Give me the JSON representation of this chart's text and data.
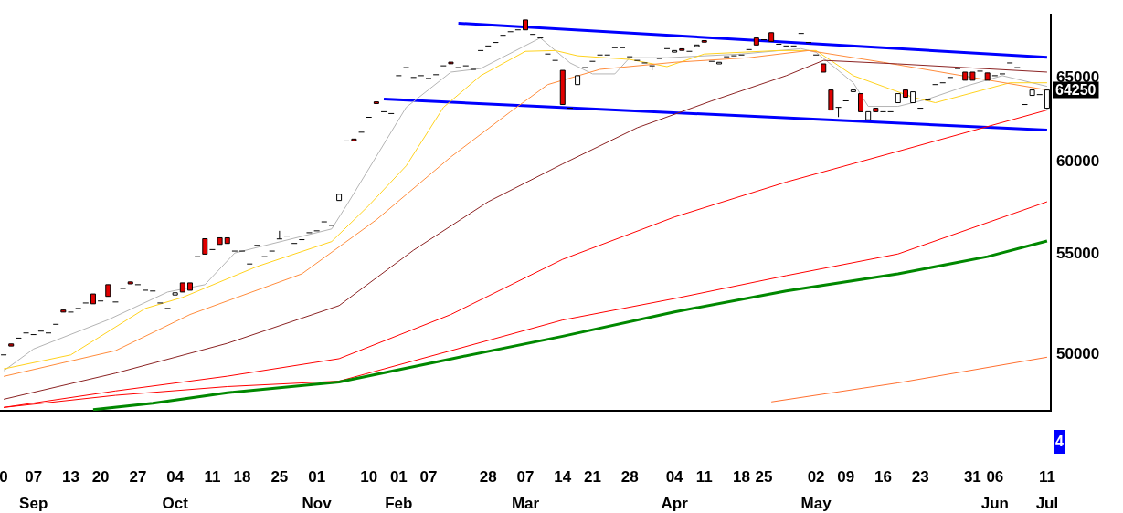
{
  "chart_data": {
    "type": "candlestick",
    "categories": [
      "0",
      null,
      null,
      null,
      "07\nSep",
      null,
      null,
      null,
      null,
      "13",
      null,
      null,
      null,
      "20",
      null,
      null,
      null,
      null,
      "27",
      null,
      null,
      null,
      null,
      "04\nOct",
      null,
      null,
      null,
      null,
      "11",
      null,
      null,
      null,
      "18",
      null,
      null,
      null,
      null,
      "25",
      null,
      null,
      null,
      null,
      "01\nNov",
      null,
      null,
      null,
      null,
      null,
      null,
      "10",
      null,
      null,
      null,
      "01\nFeb",
      null,
      null,
      null,
      "07",
      null,
      null,
      null,
      null,
      null,
      null,
      null,
      "28",
      null,
      null,
      null,
      null,
      "07\nMar",
      null,
      null,
      null,
      null,
      "14",
      null,
      null,
      null,
      "21",
      null,
      null,
      null,
      null,
      "28",
      null,
      null,
      null,
      null,
      null,
      "04\nApr",
      null,
      null,
      null,
      "11",
      null,
      null,
      null,
      null,
      "18",
      null,
      null,
      "25",
      null,
      null,
      null,
      null,
      null,
      null,
      "02\nMay",
      null,
      null,
      null,
      "09",
      null,
      null,
      null,
      null,
      "16",
      null,
      null,
      null,
      null,
      "23",
      null,
      null,
      null,
      null,
      null,
      null,
      "31",
      null,
      null,
      "06\nJun",
      null,
      null,
      null,
      null,
      null,
      null,
      "11\nJul"
    ],
    "ohlc": [
      [
        49980,
        49980,
        49980,
        49980
      ],
      [
        50500,
        50500,
        50400,
        50400
      ],
      [
        50780,
        50780,
        50780,
        50780
      ],
      [
        51030,
        51030,
        51030,
        51030
      ],
      [
        50950,
        50950,
        50950,
        50950
      ],
      [
        51120,
        51120,
        51120,
        51120
      ],
      [
        51030,
        51030,
        51030,
        51030
      ],
      [
        51450,
        51450,
        51450,
        51450
      ],
      [
        52150,
        52150,
        52050,
        52050
      ],
      [
        52050,
        52050,
        52050,
        52050
      ],
      [
        52230,
        52230,
        52230,
        52230
      ],
      [
        52500,
        52500,
        52500,
        52500
      ],
      [
        52950,
        52950,
        52460,
        52460
      ],
      [
        52600,
        52600,
        52600,
        52600
      ],
      [
        53420,
        53420,
        52830,
        52830
      ],
      [
        52550,
        52550,
        52550,
        52550
      ],
      [
        53230,
        53230,
        53230,
        53230
      ],
      [
        53560,
        53560,
        53460,
        53460
      ],
      [
        53420,
        53420,
        53420,
        53420
      ],
      [
        53140,
        53140,
        53140,
        53140
      ],
      [
        53100,
        53100,
        53100,
        53100
      ],
      [
        52500,
        52500,
        52500,
        52500
      ],
      [
        52230,
        52230,
        52230,
        52230
      ],
      [
        52900,
        53010,
        52900,
        53010
      ],
      [
        53510,
        53510,
        53050,
        53050
      ],
      [
        53510,
        53510,
        53140,
        53140
      ],
      [
        54860,
        54860,
        54860,
        54860
      ],
      [
        55800,
        55800,
        54990,
        54990
      ],
      [
        55230,
        55230,
        55230,
        55230
      ],
      [
        55850,
        55850,
        55500,
        55500
      ],
      [
        55850,
        55850,
        55550,
        55550
      ],
      [
        55150,
        55150,
        55150,
        55150
      ],
      [
        55150,
        55150,
        55150,
        55150
      ],
      [
        54480,
        54480,
        54480,
        54480
      ],
      [
        55450,
        55450,
        55450,
        55450
      ],
      [
        54860,
        54860,
        54860,
        54860
      ],
      [
        55150,
        55150,
        55150,
        55150
      ],
      [
        55790,
        56220,
        55790,
        55790
      ],
      [
        55940,
        55940,
        55940,
        55940
      ],
      [
        55550,
        55550,
        55550,
        55550
      ],
      [
        55750,
        55750,
        55750,
        55750
      ],
      [
        56120,
        56120,
        56120,
        56120
      ],
      [
        56220,
        56220,
        56220,
        56220
      ],
      [
        56700,
        56700,
        56700,
        56700
      ],
      [
        56510,
        56510,
        56510,
        56510
      ],
      [
        57860,
        58200,
        57860,
        58200
      ],
      [
        61220,
        61220,
        61220,
        61220
      ],
      [
        61330,
        61330,
        61230,
        61230
      ],
      [
        61730,
        61730,
        61730,
        61730
      ],
      [
        62610,
        62610,
        62610,
        62610
      ],
      [
        63530,
        63530,
        63430,
        63430
      ],
      [
        62940,
        62940,
        62940,
        62940
      ],
      [
        62830,
        62830,
        62830,
        62830
      ],
      [
        65130,
        65130,
        65130,
        65130
      ],
      [
        65630,
        65630,
        65630,
        65630
      ],
      [
        65020,
        65020,
        65020,
        65020
      ],
      [
        65130,
        65130,
        65130,
        65130
      ],
      [
        64960,
        64960,
        64960,
        64960
      ],
      [
        65190,
        65190,
        65190,
        65190
      ],
      [
        65740,
        65740,
        65740,
        65740
      ],
      [
        65970,
        65970,
        65870,
        65870
      ],
      [
        65630,
        65630,
        65630,
        65630
      ],
      [
        65740,
        65740,
        65740,
        65740
      ],
      [
        65520,
        65520,
        65520,
        65520
      ],
      [
        66700,
        66700,
        66700,
        66700
      ],
      [
        66990,
        66990,
        66990,
        66990
      ],
      [
        67210,
        67210,
        67210,
        67210
      ],
      [
        67670,
        67670,
        67670,
        67670
      ],
      [
        67900,
        67900,
        67900,
        67900
      ],
      [
        68020,
        68020,
        68020,
        68020
      ],
      [
        68660,
        68660,
        68020,
        68020
      ],
      [
        67730,
        67730,
        67730,
        67730
      ],
      [
        67500,
        67500,
        67500,
        67500
      ],
      [
        66480,
        66480,
        66480,
        66480
      ],
      [
        66080,
        66080,
        66080,
        66080
      ],
      [
        65460,
        65460,
        63370,
        63370
      ],
      [
        63150,
        63150,
        63150,
        63150
      ],
      [
        64580,
        65130,
        64580,
        65130
      ],
      [
        65630,
        65630,
        65630,
        65630
      ],
      [
        66020,
        66020,
        66020,
        66020
      ],
      [
        66420,
        66420,
        66420,
        66420
      ],
      [
        66420,
        66420,
        66420,
        66420
      ],
      [
        66880,
        66880,
        66880,
        66880
      ],
      [
        66880,
        66880,
        66880,
        66880
      ],
      [
        66310,
        66310,
        66310,
        66310
      ],
      [
        66080,
        66080,
        66080,
        66080
      ],
      [
        65920,
        65920,
        65920,
        65920
      ],
      [
        65740,
        65740,
        65460,
        65740
      ],
      [
        66200,
        66200,
        66200,
        66200
      ],
      [
        66820,
        66820,
        66820,
        66820
      ],
      [
        66600,
        66700,
        66600,
        66700
      ],
      [
        66810,
        66810,
        66710,
        66710
      ],
      [
        66650,
        66650,
        66650,
        66650
      ],
      [
        66950,
        67050,
        66950,
        67050
      ],
      [
        67330,
        67330,
        67230,
        67230
      ],
      [
        66020,
        66020,
        66020,
        66020
      ],
      [
        65860,
        65960,
        65860,
        65960
      ],
      [
        66310,
        66310,
        66310,
        66310
      ],
      [
        66370,
        66370,
        66370,
        66370
      ],
      [
        66420,
        66420,
        66420,
        66420
      ],
      [
        66760,
        66760,
        66760,
        66760
      ],
      [
        67500,
        67500,
        67050,
        67050
      ],
      [
        67390,
        67390,
        67390,
        67390
      ],
      [
        67840,
        67840,
        67280,
        67280
      ],
      [
        67100,
        67100,
        67100,
        67100
      ],
      [
        66990,
        66990,
        66990,
        66990
      ],
      [
        66990,
        66990,
        66990,
        66990
      ],
      [
        67790,
        67790,
        67790,
        67790
      ],
      [
        67210,
        67210,
        67210,
        67210
      ],
      [
        66420,
        66420,
        66420,
        66420
      ],
      [
        65860,
        65860,
        65350,
        65350
      ],
      [
        64250,
        64250,
        63040,
        63040
      ],
      [
        63200,
        63200,
        62620,
        63200
      ],
      [
        63590,
        63590,
        63590,
        63590
      ],
      [
        64150,
        64250,
        64150,
        64250
      ],
      [
        64030,
        64030,
        62940,
        62940
      ],
      [
        62460,
        62940,
        62460,
        62940
      ],
      [
        63150,
        63150,
        62940,
        62940
      ],
      [
        62940,
        62940,
        62940,
        62940
      ],
      [
        62940,
        62940,
        62940,
        62940
      ],
      [
        63480,
        64030,
        63480,
        64030
      ],
      [
        64250,
        64250,
        63810,
        63810
      ],
      [
        63480,
        64140,
        63480,
        64140
      ],
      [
        63150,
        63150,
        63150,
        63150
      ],
      [
        63640,
        63640,
        63640,
        63640
      ],
      [
        64580,
        64580,
        64580,
        64580
      ],
      [
        64690,
        64690,
        64690,
        64690
      ],
      [
        65020,
        65020,
        65020,
        65020
      ],
      [
        65570,
        65570,
        65570,
        65570
      ],
      [
        65350,
        65350,
        64850,
        64850
      ],
      [
        65350,
        65350,
        64850,
        64850
      ],
      [
        65410,
        65410,
        65410,
        65410
      ],
      [
        65300,
        65300,
        64850,
        64850
      ],
      [
        65130,
        65130,
        65130,
        65130
      ],
      [
        65240,
        65240,
        65240,
        65240
      ],
      [
        65920,
        65920,
        65920,
        65920
      ],
      [
        65630,
        65630,
        65630,
        65630
      ],
      [
        63370,
        63370,
        63370,
        63370
      ],
      [
        63920,
        64250,
        63920,
        64250
      ],
      [
        63970,
        63970,
        63970,
        63970
      ],
      [
        63150,
        64250,
        63100,
        64250
      ]
    ],
    "series": [
      {
        "type": "line",
        "color": "#008800",
        "values": [
          null,
          null,
          null,
          null,
          null,
          null,
          null,
          null,
          null,
          null,
          null,
          null,
          47450,
          null,
          null,
          null,
          null,
          null,
          null,
          null,
          47740,
          null,
          null,
          null,
          null,
          null,
          null,
          null,
          null,
          null,
          48220,
          null,
          null,
          null,
          null,
          null,
          null,
          null,
          null,
          null,
          null,
          null,
          null,
          null,
          null,
          48710,
          null,
          null,
          null,
          null,
          null,
          null,
          null,
          null,
          null,
          null,
          null,
          null,
          null,
          null,
          49790,
          null,
          null,
          null,
          null,
          null,
          null,
          null,
          null,
          null,
          null,
          null,
          null,
          null,
          null,
          50870,
          null,
          null,
          null,
          null,
          null,
          null,
          null,
          null,
          null,
          null,
          null,
          null,
          null,
          null,
          52060,
          null,
          null,
          null,
          null,
          null,
          null,
          null,
          null,
          null,
          null,
          null,
          null,
          null,
          null,
          53100,
          null,
          null,
          null,
          null,
          null,
          null,
          null,
          null,
          null,
          null,
          null,
          null,
          null,
          null,
          53970,
          null,
          null,
          null,
          null,
          null,
          null,
          null,
          null,
          null,
          null,
          null,
          54860,
          null,
          null,
          null,
          null,
          null,
          null,
          null,
          55680
        ]
      },
      {
        "type": "line",
        "color": "#ff0000",
        "values": [
          47550,
          null,
          null,
          null,
          null,
          null,
          null,
          null,
          null,
          null,
          null,
          null,
          null,
          null,
          null,
          48100,
          null,
          null,
          null,
          null,
          null,
          null,
          null,
          null,
          null,
          null,
          null,
          null,
          null,
          null,
          48500,
          null,
          null,
          null,
          null,
          null,
          null,
          null,
          null,
          null,
          null,
          null,
          null,
          null,
          null,
          48750,
          null,
          null,
          null,
          null,
          null,
          null,
          null,
          null,
          null,
          null,
          null,
          null,
          null,
          null,
          50180,
          null,
          null,
          null,
          null,
          null,
          null,
          null,
          null,
          null,
          null,
          null,
          null,
          null,
          null,
          51660,
          null,
          null,
          null,
          null,
          null,
          null,
          null,
          null,
          null,
          null,
          null,
          null,
          null,
          null,
          52720,
          null,
          null,
          null,
          null,
          null,
          null,
          null,
          null,
          null,
          null,
          null,
          null,
          null,
          null,
          53880,
          null,
          null,
          null,
          null,
          null,
          null,
          null,
          null,
          null,
          null,
          null,
          null,
          null,
          null,
          55000,
          null,
          null,
          null,
          null,
          null,
          null,
          null,
          null,
          null,
          null,
          null,
          null,
          null,
          null,
          null,
          null,
          null,
          null,
          null,
          57790
        ]
      },
      {
        "type": "line",
        "color": "#ff0000",
        "values": [
          47550,
          null,
          null,
          null,
          null,
          null,
          null,
          null,
          null,
          null,
          null,
          null,
          null,
          null,
          null,
          48300,
          null,
          null,
          null,
          null,
          null,
          null,
          null,
          null,
          null,
          null,
          null,
          null,
          null,
          null,
          48980,
          null,
          null,
          null,
          null,
          null,
          null,
          null,
          null,
          null,
          null,
          null,
          null,
          null,
          null,
          49800,
          null,
          null,
          null,
          null,
          null,
          null,
          null,
          null,
          null,
          null,
          null,
          null,
          null,
          null,
          51930,
          null,
          null,
          null,
          null,
          null,
          null,
          null,
          null,
          null,
          null,
          null,
          null,
          null,
          null,
          54720,
          null,
          null,
          null,
          null,
          null,
          null,
          null,
          null,
          null,
          null,
          null,
          null,
          null,
          null,
          56960,
          null,
          null,
          null,
          null,
          null,
          null,
          null,
          null,
          null,
          null,
          null,
          null,
          null,
          null,
          58880,
          null,
          null,
          null,
          null,
          null,
          null,
          null,
          null,
          null,
          null,
          null,
          null,
          null,
          null,
          60620,
          null,
          null,
          null,
          null,
          null,
          null,
          null,
          null,
          null,
          null,
          null,
          null,
          null,
          null,
          null,
          null,
          null,
          null,
          null,
          63040
        ]
      },
      {
        "type": "line",
        "color": "#8b2323",
        "values": [
          47920,
          null,
          null,
          null,
          null,
          null,
          null,
          null,
          null,
          null,
          null,
          null,
          null,
          null,
          null,
          49120,
          null,
          null,
          null,
          null,
          null,
          null,
          null,
          null,
          null,
          null,
          null,
          null,
          null,
          null,
          50530,
          null,
          null,
          null,
          null,
          null,
          null,
          null,
          null,
          null,
          null,
          null,
          null,
          null,
          null,
          52370,
          null,
          null,
          null,
          null,
          null,
          null,
          null,
          null,
          null,
          55200,
          null,
          null,
          null,
          null,
          null,
          null,
          null,
          null,
          null,
          57790,
          null,
          null,
          null,
          null,
          null,
          null,
          null,
          null,
          null,
          59900,
          null,
          null,
          null,
          null,
          null,
          null,
          null,
          null,
          null,
          61990,
          null,
          null,
          null,
          null,
          null,
          null,
          null,
          null,
          null,
          63590,
          null,
          null,
          null,
          null,
          null,
          null,
          null,
          null,
          null,
          65130,
          null,
          null,
          null,
          null,
          66080,
          null,
          null,
          null,
          null,
          null,
          null,
          null,
          null,
          null,
          65860,
          null,
          null,
          null,
          null,
          null,
          null,
          null,
          null,
          null,
          null,
          null,
          null,
          null,
          null,
          null,
          null,
          null,
          null,
          null,
          65350
        ]
      },
      {
        "type": "line",
        "color": "#ff8c3c",
        "values": [
          48970,
          null,
          null,
          null,
          null,
          null,
          null,
          null,
          null,
          null,
          null,
          null,
          null,
          null,
          null,
          50180,
          null,
          null,
          null,
          null,
          null,
          null,
          null,
          null,
          null,
          51930,
          null,
          null,
          null,
          null,
          null,
          null,
          null,
          null,
          null,
          null,
          null,
          null,
          null,
          null,
          53970,
          null,
          null,
          null,
          null,
          null,
          null,
          null,
          null,
          null,
          56810,
          null,
          null,
          null,
          null,
          null,
          null,
          null,
          null,
          null,
          60300,
          null,
          null,
          null,
          null,
          null,
          null,
          null,
          62940,
          null,
          null,
          null,
          null,
          64580,
          null,
          null,
          null,
          null,
          null,
          null,
          65520,
          null,
          null,
          null,
          null,
          null,
          null,
          null,
          null,
          null,
          65960,
          null,
          null,
          null,
          null,
          null,
          null,
          null,
          null,
          null,
          66250,
          null,
          null,
          null,
          null,
          null,
          null,
          null,
          66700,
          null,
          null,
          null,
          null,
          null,
          null,
          null,
          null,
          null,
          65960,
          null,
          null,
          null,
          null,
          null,
          null,
          null,
          null,
          null,
          null,
          null,
          65020,
          null,
          null,
          null,
          null,
          null,
          null,
          null,
          null,
          null,
          64250
        ]
      },
      {
        "type": "line",
        "color": "#ffd21e",
        "values": [
          49320,
          null,
          null,
          null,
          null,
          null,
          null,
          null,
          null,
          49980,
          null,
          null,
          null,
          null,
          null,
          null,
          null,
          null,
          null,
          52230,
          null,
          null,
          null,
          null,
          52780,
          null,
          null,
          null,
          null,
          null,
          null,
          null,
          null,
          null,
          54350,
          null,
          null,
          null,
          null,
          null,
          null,
          null,
          null,
          null,
          55650,
          null,
          null,
          null,
          null,
          57590,
          null,
          null,
          null,
          null,
          59790,
          null,
          null,
          null,
          null,
          63200,
          null,
          null,
          null,
          null,
          65130,
          null,
          null,
          null,
          null,
          null,
          66650,
          null,
          null,
          null,
          66700,
          null,
          null,
          66370,
          null,
          null,
          null,
          null,
          null,
          null,
          66140,
          null,
          null,
          null,
          null,
          65690,
          null,
          null,
          null,
          null,
          66480,
          null,
          null,
          null,
          null,
          null,
          null,
          null,
          null,
          null,
          66700,
          null,
          null,
          null,
          null,
          66700,
          null,
          null,
          null,
          null,
          65130,
          null,
          null,
          null,
          null,
          null,
          null,
          null,
          63810,
          null,
          null,
          63480,
          null,
          null,
          null,
          null,
          null,
          null,
          null,
          null,
          null,
          64690,
          null,
          null,
          null,
          null,
          64690
        ]
      },
      {
        "type": "line",
        "color": "#b4b4b4",
        "values": [
          49230,
          null,
          null,
          null,
          50260,
          null,
          null,
          null,
          null,
          null,
          null,
          null,
          null,
          null,
          51670,
          null,
          null,
          null,
          null,
          null,
          null,
          null,
          53050,
          null,
          null,
          null,
          null,
          53420,
          null,
          null,
          null,
          55050,
          null,
          null,
          null,
          null,
          null,
          null,
          null,
          null,
          null,
          null,
          null,
          null,
          56320,
          null,
          57590,
          null,
          null,
          null,
          null,
          null,
          null,
          null,
          63200,
          null,
          null,
          null,
          null,
          null,
          65350,
          null,
          null,
          null,
          65570,
          null,
          null,
          null,
          null,
          null,
          null,
          null,
          67500,
          null,
          null,
          null,
          65920,
          null,
          null,
          65240,
          null,
          null,
          65240,
          null,
          66250,
          null,
          null,
          null,
          null,
          66250,
          null,
          null,
          null,
          null,
          null,
          null,
          null,
          null,
          null,
          66480,
          null,
          null,
          null,
          null,
          null,
          null,
          null,
          66820,
          null,
          66590,
          null,
          null,
          null,
          null,
          64690,
          null,
          63260,
          null,
          null,
          null,
          63260,
          null,
          null,
          null,
          63700,
          null,
          null,
          null,
          null,
          64470,
          null,
          null,
          null,
          null,
          65130,
          null,
          null,
          null,
          null,
          null,
          64470
        ]
      },
      {
        "type": "line",
        "color": "#ff7030",
        "values": [
          null,
          null,
          null,
          null,
          null,
          null,
          null,
          null,
          null,
          null,
          null,
          null,
          null,
          null,
          null,
          null,
          null,
          null,
          null,
          null,
          null,
          null,
          null,
          null,
          null,
          null,
          null,
          null,
          null,
          null,
          null,
          null,
          null,
          null,
          null,
          null,
          null,
          null,
          null,
          null,
          null,
          null,
          null,
          null,
          null,
          null,
          null,
          null,
          null,
          null,
          null,
          null,
          null,
          null,
          null,
          null,
          null,
          null,
          null,
          null,
          null,
          null,
          null,
          null,
          null,
          null,
          null,
          null,
          null,
          null,
          null,
          null,
          null,
          null,
          null,
          null,
          null,
          null,
          null,
          null,
          null,
          null,
          null,
          null,
          null,
          null,
          null,
          null,
          null,
          null,
          null,
          null,
          null,
          null,
          null,
          null,
          null,
          null,
          null,
          null,
          null,
          null,
          null,
          47800,
          null,
          null,
          null,
          null,
          null,
          null,
          null,
          null,
          null,
          null,
          null,
          null,
          null,
          null,
          null,
          null,
          48670,
          null,
          null,
          null,
          null,
          null,
          null,
          null,
          null,
          null,
          null,
          null,
          null,
          null,
          null,
          null,
          null,
          null,
          null,
          null,
          49870
        ]
      },
      {
        "type": "line",
        "color": "#0000ff",
        "values": [
          null,
          null,
          null,
          null,
          null,
          null,
          null,
          null,
          null,
          null,
          null,
          null,
          null,
          null,
          null,
          null,
          null,
          null,
          null,
          null,
          null,
          null,
          null,
          null,
          null,
          null,
          null,
          null,
          null,
          null,
          null,
          null,
          null,
          null,
          null,
          null,
          null,
          null,
          null,
          null,
          null,
          null,
          null,
          null,
          null,
          null,
          null,
          null,
          null,
          null,
          null,
          null,
          null,
          null,
          null,
          null,
          null,
          null,
          null,
          null,
          null,
          68450,
          null,
          null,
          null,
          null,
          null,
          null,
          null,
          null,
          null,
          null,
          null,
          null,
          null,
          null,
          null,
          null,
          null,
          null,
          null,
          null,
          null,
          null,
          null,
          null,
          null,
          null,
          null,
          null,
          null,
          null,
          null,
          null,
          null,
          null,
          null,
          null,
          null,
          null,
          null,
          null,
          null,
          null,
          null,
          null,
          null,
          null,
          null,
          null,
          null,
          null,
          null,
          null,
          null,
          null,
          null,
          null,
          null,
          null,
          null,
          null,
          null,
          null,
          null,
          null,
          null,
          null,
          null,
          null,
          null,
          null,
          null,
          null,
          null,
          null,
          null,
          null,
          null,
          null,
          66280
        ]
      },
      {
        "type": "line",
        "color": "#0000ff",
        "values": [
          null,
          null,
          null,
          null,
          null,
          null,
          null,
          null,
          null,
          null,
          null,
          null,
          null,
          null,
          null,
          null,
          null,
          null,
          null,
          null,
          null,
          null,
          null,
          null,
          null,
          null,
          null,
          null,
          null,
          null,
          null,
          null,
          null,
          null,
          null,
          null,
          null,
          null,
          null,
          null,
          null,
          null,
          null,
          null,
          null,
          null,
          null,
          null,
          null,
          null,
          null,
          63700,
          null,
          null,
          null,
          null,
          null,
          null,
          null,
          null,
          null,
          null,
          null,
          null,
          null,
          null,
          null,
          null,
          null,
          null,
          null,
          null,
          null,
          null,
          null,
          null,
          null,
          null,
          null,
          null,
          null,
          null,
          null,
          null,
          null,
          null,
          null,
          null,
          null,
          null,
          null,
          null,
          null,
          null,
          null,
          null,
          null,
          null,
          null,
          null,
          null,
          null,
          null,
          null,
          null,
          null,
          null,
          null,
          null,
          null,
          null,
          null,
          null,
          null,
          null,
          null,
          null,
          null,
          null,
          null,
          null,
          null,
          null,
          null,
          null,
          null,
          null,
          null,
          null,
          null,
          null,
          null,
          null,
          null,
          null,
          null,
          null,
          null,
          null,
          null,
          61850
        ]
      }
    ],
    "ylim": [
      47400,
      69000
    ],
    "yticks": [
      50000,
      55000,
      60000,
      65000
    ],
    "log": true,
    "annotations": [
      "64250",
      "4"
    ]
  }
}
